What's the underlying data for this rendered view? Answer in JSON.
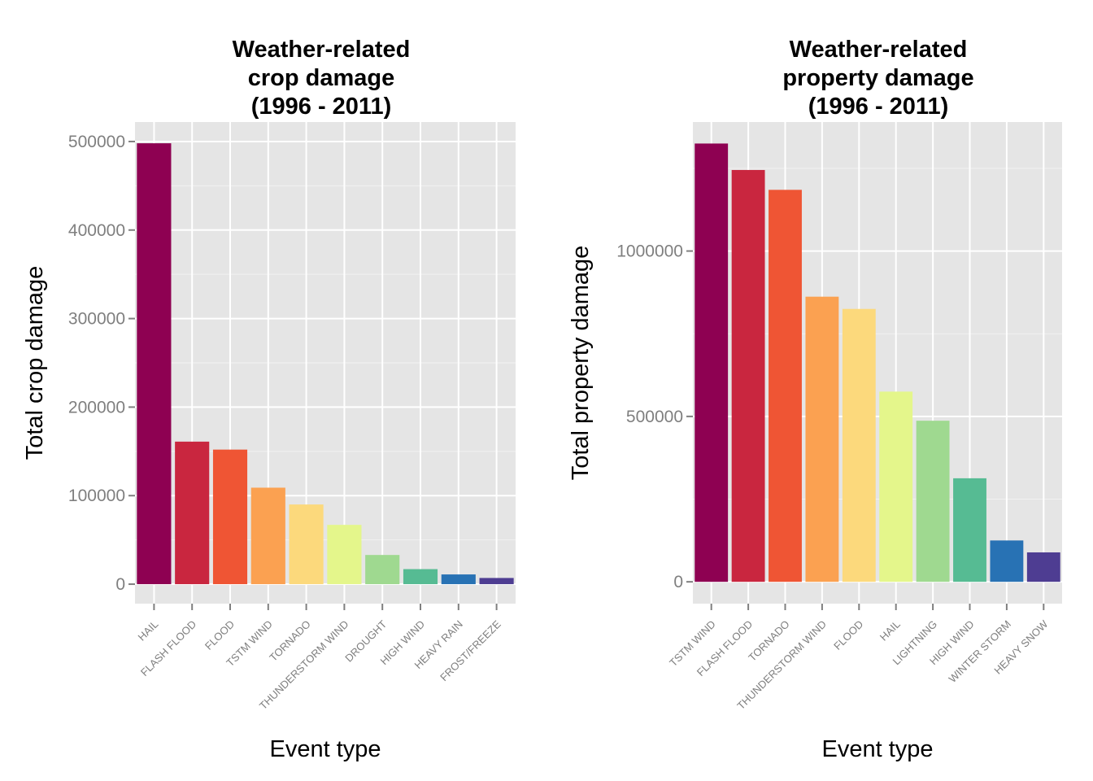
{
  "chart_data": [
    {
      "type": "bar",
      "title": [
        "Weather-related",
        "crop damage",
        "(1996 - 2011)"
      ],
      "xlabel": "Event type",
      "ylabel": "Total crop damage",
      "categories": [
        "HAIL",
        "FLASH FLOOD",
        "FLOOD",
        "TSTM WIND",
        "TORNADO",
        "THUNDERSTORM WIND",
        "DROUGHT",
        "HIGH WIND",
        "HEAVY RAIN",
        "FROST/FREEZE"
      ],
      "values": [
        498000,
        161000,
        152000,
        109000,
        90000,
        67000,
        33000,
        17000,
        11000,
        7000
      ],
      "colors": [
        "#8e0152",
        "#c9263f",
        "#ef5534",
        "#fba151",
        "#fcd97c",
        "#e4f68b",
        "#9fd990",
        "#56bb93",
        "#2872b4",
        "#4e3d92"
      ],
      "ylim": [
        -22000,
        522000
      ],
      "yticks": [
        0,
        100000,
        200000,
        300000,
        400000,
        500000
      ],
      "ytick_labels": [
        "0",
        "100000",
        "200000",
        "300000",
        "400000",
        "500000"
      ],
      "grid": true
    },
    {
      "type": "bar",
      "title": [
        "Weather-related",
        "property damage",
        "(1996 - 2011)"
      ],
      "xlabel": "Event type",
      "ylabel": "Total property damage",
      "categories": [
        "TSTM WIND",
        "FLASH FLOOD",
        "TORNADO",
        "THUNDERSTORM WIND",
        "FLOOD",
        "HAIL",
        "LIGHTNING",
        "HIGH WIND",
        "WINTER STORM",
        "HEAVY SNOW"
      ],
      "values": [
        1325000,
        1245000,
        1185000,
        862000,
        825000,
        575000,
        487000,
        313000,
        125000,
        89000
      ],
      "colors": [
        "#8e0152",
        "#c9263f",
        "#ef5534",
        "#fba151",
        "#fcd97c",
        "#e4f68b",
        "#9fd990",
        "#56bb93",
        "#2872b4",
        "#4e3d92"
      ],
      "ylim": [
        -66000,
        1390000
      ],
      "yticks": [
        0,
        500000,
        1000000
      ],
      "ytick_labels": [
        "0",
        "500000",
        "1000000"
      ],
      "grid": true
    }
  ]
}
